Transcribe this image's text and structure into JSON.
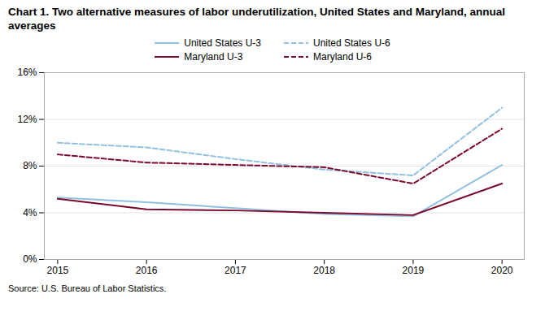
{
  "chart_data": {
    "type": "line",
    "title": "Chart 1. Two alternative measures of labor underutilization, United States and Maryland, annual averages",
    "caption": "Source: U.S. Bureau of Labor Statistics.",
    "x": [
      2015,
      2016,
      2017,
      2018,
      2019,
      2020
    ],
    "series": [
      {
        "name": "United States U-3",
        "color": "#92c0e0",
        "line_style": "solid",
        "values": [
          5.3,
          4.9,
          4.4,
          3.9,
          3.7,
          8.1
        ]
      },
      {
        "name": "United States U-6",
        "color": "#92c0e0",
        "line_style": "dashed",
        "values": [
          10.0,
          9.6,
          8.6,
          7.7,
          7.2,
          13.0
        ]
      },
      {
        "name": "Maryland U-3",
        "color": "#7b0a2a",
        "line_style": "solid",
        "values": [
          5.2,
          4.3,
          4.2,
          4.0,
          3.8,
          6.5
        ]
      },
      {
        "name": "Maryland U-6",
        "color": "#7b0a2a",
        "line_style": "dashed",
        "values": [
          9.0,
          8.3,
          8.1,
          7.9,
          6.5,
          11.2
        ]
      }
    ],
    "xlim": [
      2014.85,
      2020.25
    ],
    "xticks": [
      2015,
      2016,
      2017,
      2018,
      2019,
      2020
    ],
    "ylim": [
      0,
      16
    ],
    "yticks": [
      {
        "value": 0,
        "label": "0%"
      },
      {
        "value": 4,
        "label": "4%"
      },
      {
        "value": 8,
        "label": "8%"
      },
      {
        "value": 12,
        "label": "12%"
      },
      {
        "value": 16,
        "label": "16%"
      }
    ],
    "grid": true,
    "legend": "top"
  }
}
